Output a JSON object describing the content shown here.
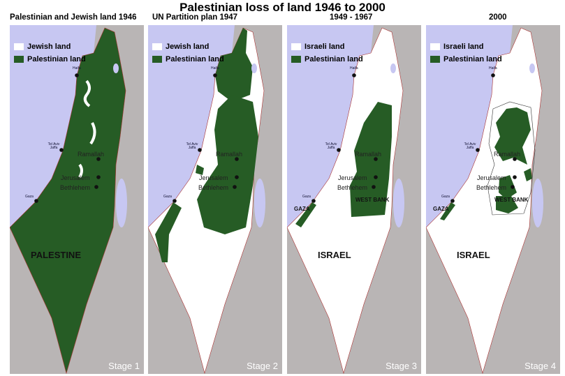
{
  "title": "Palestinian loss of land 1946 to 2000",
  "colors": {
    "palestinian": "#265c25",
    "jewish": "#ffffff",
    "sea": "#c7c7f2",
    "other_land": "#b9b5b5"
  },
  "panels": [
    {
      "title": "Palestinian and Jewish land 1946",
      "legend": [
        "Jewish land",
        "Palestinian land"
      ],
      "country_label": "PALESTINE",
      "region_labels": [],
      "stage": "Stage 1"
    },
    {
      "title": "UN Partition plan  1947",
      "legend": [
        "Jewish land",
        "Palestinian land"
      ],
      "country_label": "",
      "region_labels": [],
      "stage": "Stage 2"
    },
    {
      "title": "1949 - 1967",
      "legend": [
        "Israeli land",
        "Palestinian land"
      ],
      "country_label": "ISRAEL",
      "region_labels": [
        "GAZA",
        "WEST BANK"
      ],
      "stage": "Stage 3"
    },
    {
      "title": "2000",
      "legend": [
        "Israeli land",
        "Palestinian land"
      ],
      "country_label": "ISRAEL",
      "region_labels": [
        "GAZA",
        "WEST BANK"
      ],
      "stage": "Stage 4"
    }
  ],
  "cities": {
    "haifa": "Haifa",
    "telaviv": "Tel Aviv Jaffa",
    "ramallah": "Ramallah",
    "jerusalem": "Jerusalem",
    "bethlehem": "Bethlehem",
    "gaza": "Gaza"
  }
}
